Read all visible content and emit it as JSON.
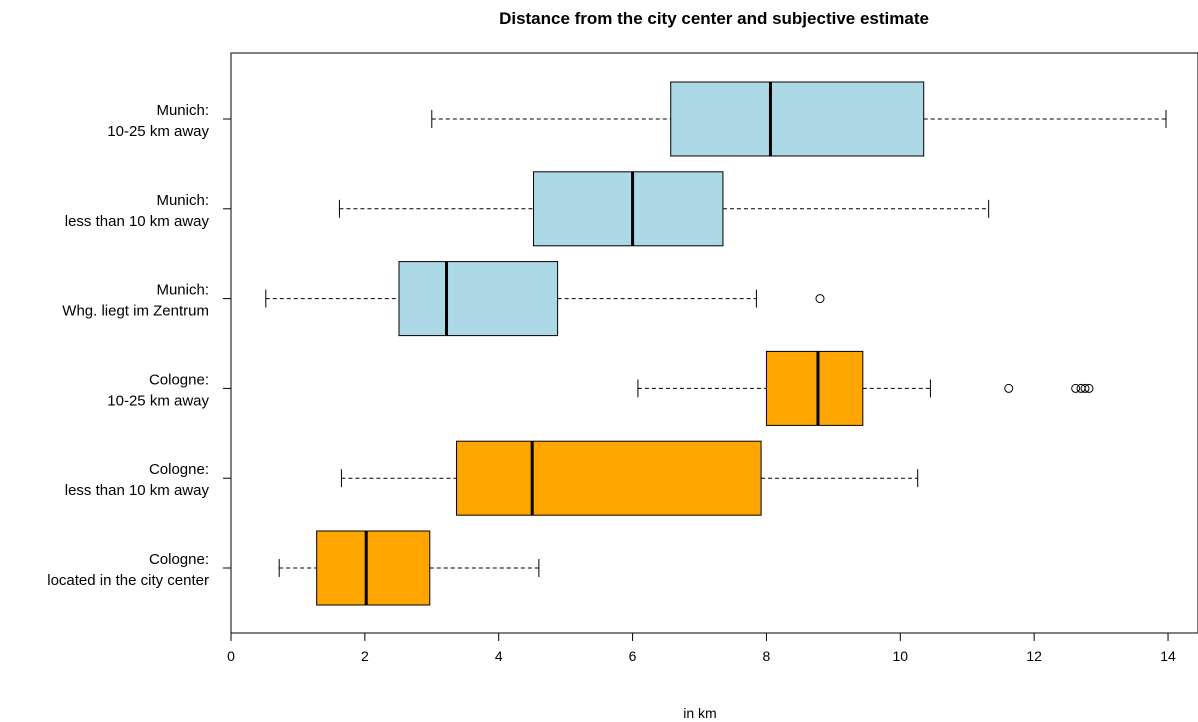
{
  "chart_data": {
    "type": "boxplot",
    "title": "Distance from the city center and subjective estimate",
    "xlabel": "in km",
    "ylabel": "",
    "xlim": [
      0,
      14
    ],
    "x_ticks": [
      0,
      2,
      4,
      6,
      8,
      10,
      12,
      14
    ],
    "orientation": "horizontal",
    "grid": false,
    "colors": {
      "Munich": "#add8e6",
      "Cologne": "#ffa500"
    },
    "categories": [
      {
        "label_line1": "Munich:",
        "label_line2": "10-25 km away",
        "group": "Munich",
        "whisker_low": 3.0,
        "q1": 6.57,
        "median": 8.06,
        "q3": 10.35,
        "whisker_high": 13.97,
        "outliers": []
      },
      {
        "label_line1": "Munich:",
        "label_line2": "less than 10 km away",
        "group": "Munich",
        "whisker_low": 1.62,
        "q1": 4.52,
        "median": 6.0,
        "q3": 7.35,
        "whisker_high": 11.32,
        "outliers": []
      },
      {
        "label_line1": "Munich:",
        "label_line2": "Whg. liegt im Zentrum",
        "group": "Munich",
        "whisker_low": 0.52,
        "q1": 2.51,
        "median": 3.22,
        "q3": 4.88,
        "whisker_high": 7.85,
        "outliers": [
          8.8
        ]
      },
      {
        "label_line1": "Cologne:",
        "label_line2": "10-25 km away",
        "group": "Cologne",
        "whisker_low": 6.08,
        "q1": 8.0,
        "median": 8.77,
        "q3": 9.44,
        "whisker_high": 10.45,
        "outliers": [
          11.62,
          12.62,
          12.7,
          12.76,
          12.82
        ]
      },
      {
        "label_line1": "Cologne:",
        "label_line2": "less than 10 km away",
        "group": "Cologne",
        "whisker_low": 1.65,
        "q1": 3.37,
        "median": 4.5,
        "q3": 7.92,
        "whisker_high": 10.26,
        "outliers": []
      },
      {
        "label_line1": "Cologne:",
        "label_line2": "located in the city center",
        "group": "Cologne",
        "whisker_low": 0.72,
        "q1": 1.28,
        "median": 2.02,
        "q3": 2.97,
        "whisker_high": 4.6,
        "outliers": []
      }
    ]
  }
}
